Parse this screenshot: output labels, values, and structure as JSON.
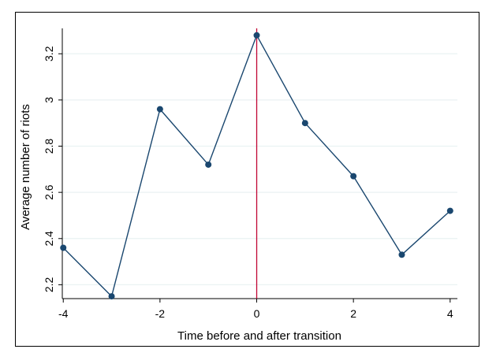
{
  "chart_data": {
    "type": "line",
    "title": "",
    "xlabel": "Time before and after transition",
    "ylabel": "Average number of riots",
    "xlim": [
      -4.02,
      4.15
    ],
    "ylim": [
      2.14,
      3.31
    ],
    "x_ticks": [
      -4,
      -2,
      0,
      2,
      4
    ],
    "x_tick_labels": [
      "-4",
      "-2",
      "0",
      "2",
      "4"
    ],
    "y_ticks": [
      2.2,
      2.4,
      2.6,
      2.8,
      3.0,
      3.2
    ],
    "y_tick_labels": [
      "2.2",
      "2.4",
      "2.6",
      "2.8",
      "3",
      "3.2"
    ],
    "grid": true,
    "series": [
      {
        "x": [
          -4,
          -3,
          -2,
          -1,
          0,
          1,
          2,
          3,
          4
        ],
        "y": [
          2.36,
          2.15,
          2.96,
          2.72,
          3.28,
          2.9,
          2.67,
          2.33,
          2.52
        ],
        "color": "#1a476f"
      }
    ],
    "reference_line": {
      "axis": "x",
      "value": 0,
      "color": "#c10534"
    }
  }
}
